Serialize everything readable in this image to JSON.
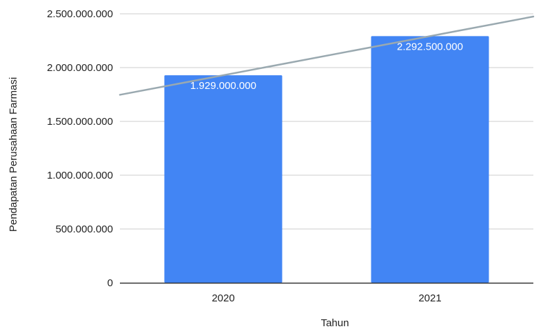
{
  "chart_data": {
    "type": "bar",
    "title": "",
    "xlabel": "Tahun",
    "ylabel": "Pendapatan Perusahaan Farmasi",
    "categories": [
      "2020",
      "2021"
    ],
    "values": [
      1929000000,
      2292500000
    ],
    "data_labels": [
      "1.929.000.000",
      "2.292.500.000"
    ],
    "ylim": [
      0,
      2500000000
    ],
    "y_ticks": [
      {
        "value": 0,
        "label": "0"
      },
      {
        "value": 500000000,
        "label": "500.000.000"
      },
      {
        "value": 1000000000,
        "label": "1.000.000.000"
      },
      {
        "value": 1500000000,
        "label": "1.500.000.000"
      },
      {
        "value": 2000000000,
        "label": "2.000.000.000"
      },
      {
        "value": 2500000000,
        "label": "2.500.000.000"
      }
    ],
    "trendline": {
      "type": "linear"
    },
    "grid": true,
    "legend": "none",
    "colors": {
      "bar": "#4285f4",
      "trendline": "#9aa9b0",
      "grid": "#cccccc",
      "axis": "#333333"
    }
  }
}
